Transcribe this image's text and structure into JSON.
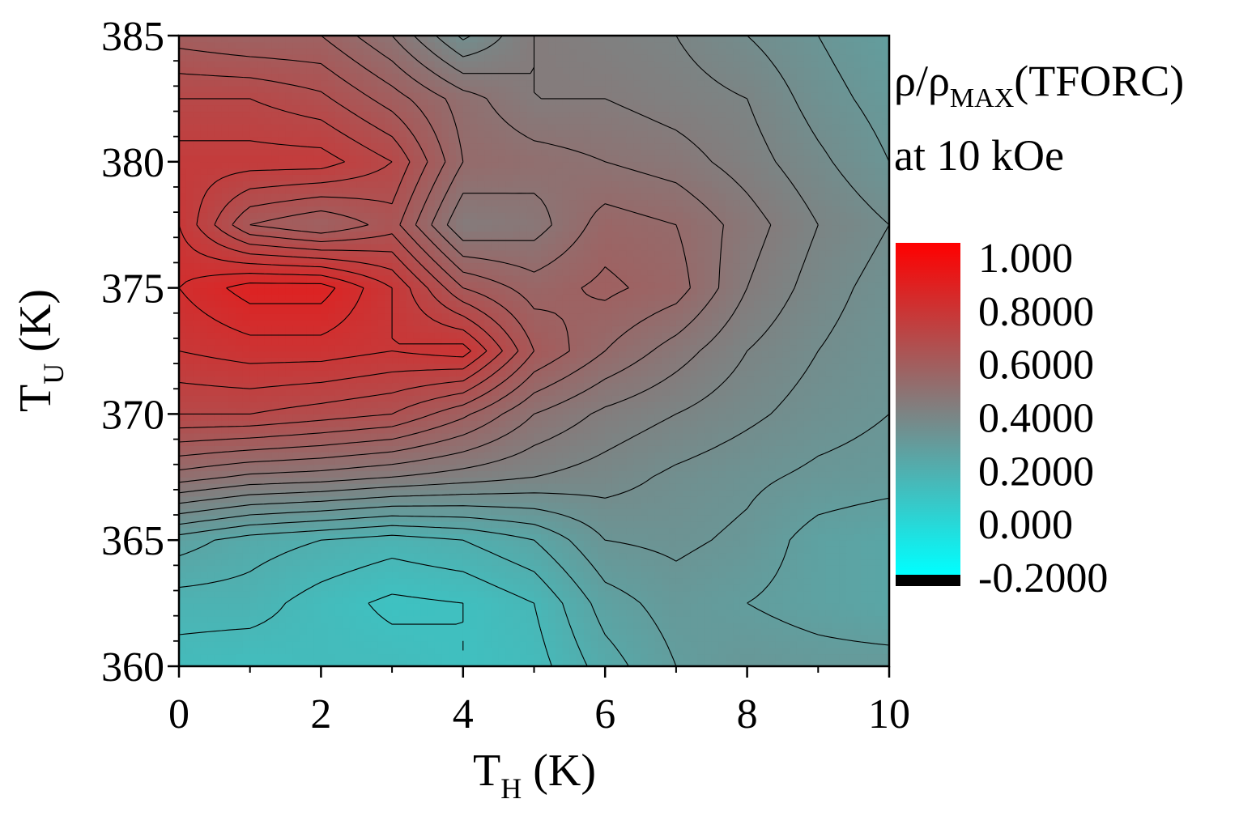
{
  "chart_data": {
    "type": "heatmap",
    "subtype": "filled-contour",
    "title": "",
    "xlabel": {
      "main": "T",
      "sub": "H",
      "unit": " (K)"
    },
    "ylabel": {
      "main": "T",
      "sub": "U",
      "unit": " (K)"
    },
    "xlim": [
      0,
      10
    ],
    "ylim": [
      360,
      385
    ],
    "x_ticks": [
      "0",
      "2",
      "4",
      "6",
      "8",
      "10"
    ],
    "y_ticks": [
      "360",
      "365",
      "370",
      "375",
      "380",
      "385"
    ],
    "colorbar": {
      "title_line1": {
        "main": "ρ/ρ",
        "sub": "MAX",
        "tail": "(TFORC)"
      },
      "title_line2": "at 10 kOe",
      "range": [
        -0.2,
        1.0
      ],
      "tick_labels": [
        "1.000",
        "0.8000",
        "0.6000",
        "0.4000",
        "0.2000",
        "0.000",
        "-0.2000"
      ],
      "colors": {
        "high": "#ff0000",
        "mid": "#808080",
        "low": "#00ffff",
        "under": "#000000"
      }
    },
    "grid_x": [
      0,
      1,
      2,
      3,
      4,
      5,
      6,
      7,
      8,
      9,
      10
    ],
    "grid_y": [
      360,
      362.5,
      365,
      367.5,
      370,
      372.5,
      375,
      377.5,
      380,
      382.5,
      385
    ],
    "z": [
      [
        0.12,
        0.11,
        0.12,
        0.12,
        0.1,
        0.12,
        0.2,
        0.26,
        0.29,
        0.28,
        0.28
      ],
      [
        0.16,
        0.16,
        0.12,
        0.09,
        0.1,
        0.14,
        0.24,
        0.28,
        0.26,
        0.24,
        0.22
      ],
      [
        0.24,
        0.2,
        0.18,
        0.16,
        0.18,
        0.22,
        0.3,
        0.31,
        0.29,
        0.24,
        0.22
      ],
      [
        0.48,
        0.45,
        0.44,
        0.42,
        0.4,
        0.38,
        0.36,
        0.33,
        0.31,
        0.29,
        0.28
      ],
      [
        0.66,
        0.66,
        0.64,
        0.62,
        0.55,
        0.46,
        0.41,
        0.38,
        0.35,
        0.32,
        0.3
      ],
      [
        0.74,
        0.76,
        0.76,
        0.74,
        0.76,
        0.58,
        0.5,
        0.44,
        0.38,
        0.34,
        0.31
      ],
      [
        0.78,
        0.84,
        0.84,
        0.74,
        0.58,
        0.52,
        0.55,
        0.52,
        0.42,
        0.36,
        0.32
      ],
      [
        0.74,
        0.58,
        0.54,
        0.6,
        0.42,
        0.44,
        0.52,
        0.5,
        0.44,
        0.38,
        0.34
      ],
      [
        0.72,
        0.72,
        0.72,
        0.66,
        0.5,
        0.48,
        0.46,
        0.44,
        0.4,
        0.35,
        0.3
      ],
      [
        0.66,
        0.66,
        0.63,
        0.56,
        0.48,
        0.42,
        0.42,
        0.4,
        0.38,
        0.32,
        0.28
      ],
      [
        0.56,
        0.54,
        0.54,
        0.46,
        0.33,
        0.42,
        0.4,
        0.38,
        0.34,
        0.3,
        0.26
      ]
    ]
  }
}
